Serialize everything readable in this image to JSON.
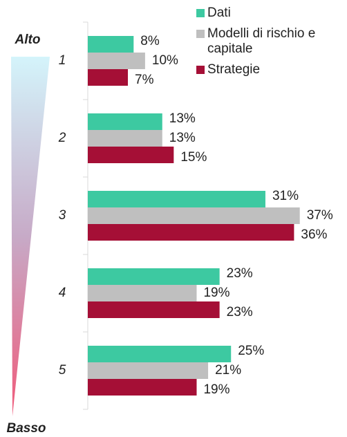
{
  "chart_data": {
    "type": "bar",
    "orientation": "horizontal",
    "annotations": {
      "top": "Alto",
      "bottom": "Basso"
    },
    "categories": [
      "1",
      "2",
      "3",
      "4",
      "5"
    ],
    "series": [
      {
        "name": "Dati",
        "color": "#3dc9a1",
        "values": [
          8,
          13,
          31,
          23,
          25
        ],
        "value_labels": [
          "8%",
          "13%",
          "31%",
          "23%",
          "25%"
        ]
      },
      {
        "name": "Modelli di rischio e capitale",
        "color": "#bfbfbf",
        "values": [
          10,
          13,
          37,
          19,
          21
        ],
        "value_labels": [
          "10%",
          "13%",
          "37%",
          "19%",
          "21%"
        ]
      },
      {
        "name": "Strategie",
        "color": "#a50f36",
        "values": [
          7,
          15,
          36,
          23,
          19
        ],
        "value_labels": [
          "7%",
          "15%",
          "36%",
          "23%",
          "19%"
        ]
      }
    ],
    "xlim": [
      0,
      45
    ],
    "legend": "top-right"
  }
}
